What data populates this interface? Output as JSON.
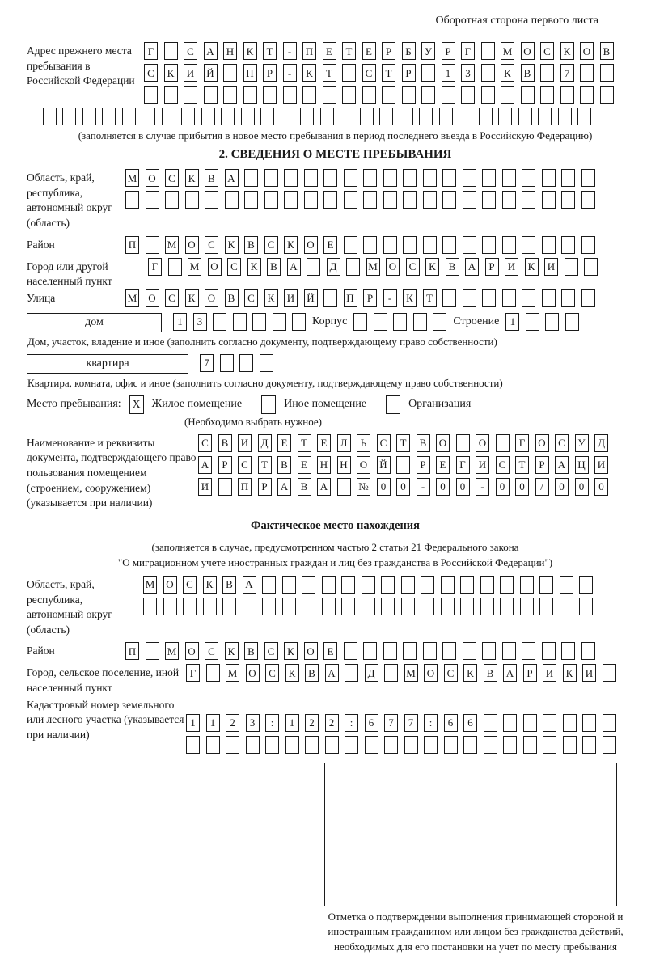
{
  "page": {
    "header_note": "Оборотная сторона первого листа"
  },
  "prev_address": {
    "label": "Адрес прежнего места пребывания в Российской Федерации",
    "rows": [
      {
        "chars": "Г САНКТ-ПЕТЕРБУРГ МОСКОВ",
        "count": 24
      },
      {
        "chars": "СКИЙ ПР-КТ СТР 13 КВ 7",
        "count": 24
      },
      {
        "chars": "",
        "count": 24
      }
    ],
    "overflow_row": {
      "chars": "",
      "count": 30
    },
    "note": "(заполняется в случае прибытия в новое место пребывания в период последнего въезда в Российскую Федерацию)"
  },
  "stay_info": {
    "title": "2. СВЕДЕНИЯ О МЕСТЕ ПРЕБЫВАНИЯ",
    "region": {
      "label": "Область, край, республика, автономный округ (область)",
      "rows": [
        {
          "chars": "МОСКВА",
          "count": 24
        },
        {
          "chars": "",
          "count": 24
        }
      ]
    },
    "district": {
      "label": "Район",
      "row": {
        "chars": "П МОСКВСКОЕ",
        "count": 24
      }
    },
    "city": {
      "label": "Город или другой населенный пункт",
      "row": {
        "chars": "Г МОСКВА Д МОСКВАРИКИ",
        "count": 23
      }
    },
    "street": {
      "label": "Улица",
      "row": {
        "chars": "МОСКОВСКИЙ ПР-КТ",
        "count": 24
      }
    },
    "house_line": {
      "house_label": "дом",
      "house_row": {
        "chars": "13",
        "count": 7
      },
      "korpus_label": "Корпус",
      "korpus_row": {
        "chars": "",
        "count": 5
      },
      "stroenie_label": "Строение",
      "stroenie_row": {
        "chars": "1",
        "count": 4
      }
    },
    "house_note": "Дом, участок, владение и иное (заполнить согласно документу, подтверждающему право собственности)",
    "apartment_line": {
      "apartment_label": "квартира",
      "apartment_row": {
        "chars": "7",
        "count": 4
      }
    },
    "apartment_note": "Квартира, комната, офис и иное (заполнить согласно документу, подтверждающему право собственности)",
    "stay_place": {
      "label": "Место пребывания:",
      "options": [
        {
          "label": "Жилое помещение",
          "mark": "X"
        },
        {
          "label": "Иное помещение",
          "mark": ""
        },
        {
          "label": "Организация",
          "mark": ""
        }
      ],
      "note": "(Необходимо выбрать нужное)"
    },
    "document": {
      "label": "Наименование и реквизиты документа, подтверждающего право пользования помещением (строением, сооружением) (указывается при наличии)",
      "rows": [
        {
          "chars": "СВИДЕТЕЛЬСТВО О ГОСУД",
          "count": 21
        },
        {
          "chars": "АРСТВЕННОЙ РЕГИСТРАЦИ",
          "count": 21
        },
        {
          "chars": "И ПРАВА №00-00-00/000",
          "count": 21
        }
      ]
    }
  },
  "actual_location": {
    "title": "Фактическое место нахождения",
    "note_line1": "(заполняется в случае, предусмотренном частью 2 статьи 21 Федерального закона",
    "note_line2": "\"О миграционном учете иностранных граждан и лиц без гражданства в Российской Федерации\")",
    "region": {
      "label": "Область, край, республика, автономный округ (область)",
      "rows": [
        {
          "chars": "МОСКВА",
          "count": 23
        },
        {
          "chars": "",
          "count": 23
        }
      ]
    },
    "district": {
      "label": "Район",
      "row": {
        "chars": "П МОСКВСКОЕ",
        "count": 24
      }
    },
    "city": {
      "label": "Город, сельское поселение, иной населенный пункт",
      "row": {
        "chars": "Г МОСКВА Д МОСКВАРИКИ",
        "count": 22
      }
    },
    "cadastral": {
      "label": "Кадастровый номер земельного или лесного участка (указывается при наличии)",
      "rows": [
        {
          "chars": "1123:122:677:66",
          "count": 22
        },
        {
          "chars": "",
          "count": 22
        }
      ]
    }
  },
  "stamp": {
    "caption": "Отметка о подтверждении выполнения принимающей стороной и иностранным гражданином или лицом без гражданства действий, необходимых для его постановки на учет по месту пребывания"
  },
  "colors": {
    "ink": "#1a1a1a",
    "background": "#ffffff"
  }
}
